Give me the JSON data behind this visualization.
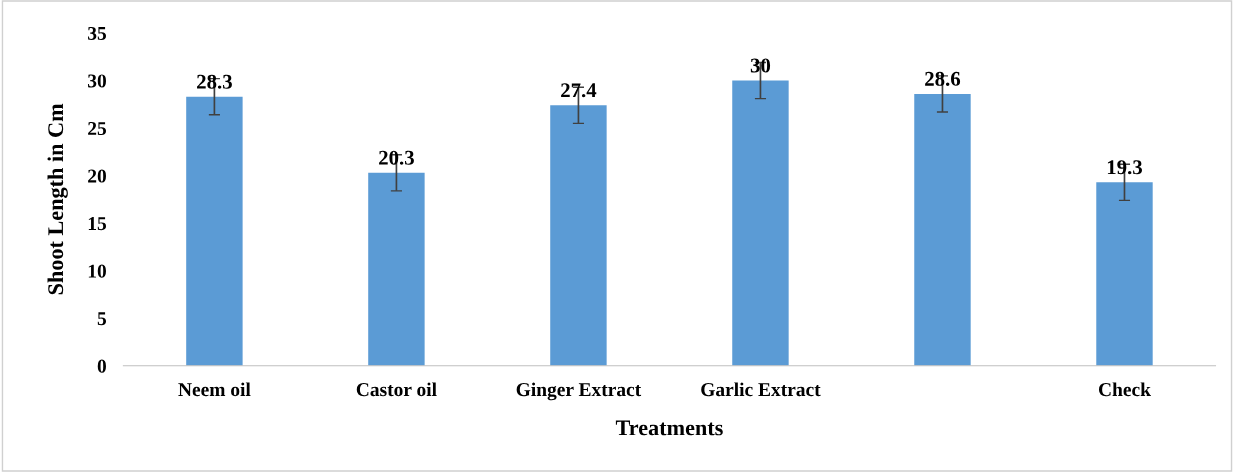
{
  "chart_data": {
    "type": "bar",
    "xlabel": "Treatments",
    "ylabel": "Shoot Length in Cm",
    "categories": [
      "Neem oil",
      "Castor oil",
      "Ginger Extract",
      "Garlic Extract",
      null,
      "Check"
    ],
    "values": [
      28.3,
      20.3,
      27.4,
      30,
      28.6,
      19.3
    ],
    "errors": [
      1.9,
      1.9,
      1.9,
      1.9,
      1.9,
      1.9
    ],
    "color": "#5b9bd5",
    "ylim": [
      0,
      35
    ],
    "yticks": [
      0,
      5,
      10,
      15,
      20,
      25,
      30,
      35
    ],
    "data_labels": true,
    "grid": false
  }
}
